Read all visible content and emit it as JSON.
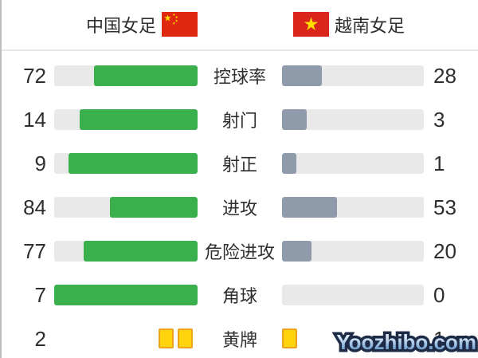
{
  "header": {
    "home_team": "中国女足",
    "away_team": "越南女足"
  },
  "stats": [
    {
      "label": "控球率",
      "home": 72,
      "away": 28,
      "type": "bar"
    },
    {
      "label": "射门",
      "home": 14,
      "away": 3,
      "type": "bar"
    },
    {
      "label": "射正",
      "home": 9,
      "away": 1,
      "type": "bar"
    },
    {
      "label": "进攻",
      "home": 84,
      "away": 53,
      "type": "bar"
    },
    {
      "label": "危险进攻",
      "home": 77,
      "away": 20,
      "type": "bar"
    },
    {
      "label": "角球",
      "home": 7,
      "away": 0,
      "type": "bar"
    },
    {
      "label": "黄牌",
      "home": 2,
      "away": 1,
      "type": "cards"
    }
  ],
  "chart_data": {
    "type": "bar",
    "orientation": "horizontal-mirrored",
    "title": "中国女足 vs 越南女足",
    "categories": [
      "控球率",
      "射门",
      "射正",
      "进攻",
      "危险进攻",
      "角球",
      "黄牌"
    ],
    "series": [
      {
        "name": "中国女足",
        "values": [
          72,
          14,
          9,
          84,
          77,
          7,
          2
        ]
      },
      {
        "name": "越南女足",
        "values": [
          28,
          3,
          1,
          53,
          20,
          0,
          1
        ]
      }
    ],
    "bar_scale": "value / (home + away) of each row",
    "note": "黄牌 row rendered as yellow card icons; away yellow-card value is partially hidden behind the watermark"
  },
  "colors": {
    "home_bar": "#3ab04c",
    "away_bar": "#8f9bab",
    "track": "#e9e9e9",
    "card_fill": "#ffd30d",
    "card_border": "#eda41c",
    "china_red": "#de2910",
    "vietnam_red": "#da251d",
    "star_yellow": "#ffde00",
    "text": "#2e2e2e"
  },
  "watermark": {
    "text": "Yoozhibo.com"
  }
}
